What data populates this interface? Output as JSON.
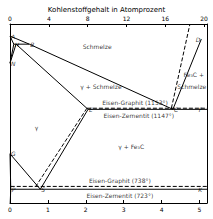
{
  "chart_data": {
    "type": "line",
    "title": "Kohlenstoffgehalt in Atomprozent",
    "color": "#000000",
    "xlim": [
      0,
      5.2
    ],
    "xticks": [
      0,
      1,
      2,
      3,
      4,
      5
    ],
    "x2lim": [
      0,
      20.3
    ],
    "x2ticks": [
      0,
      4,
      8,
      12,
      16,
      20
    ],
    "ylim": [
      650,
      1600
    ],
    "tick_labels": "x",
    "grid": false,
    "series": [
      {
        "line_style": "solid",
        "values": [
          [
            0,
            1536
          ],
          [
            0.51,
            1493
          ],
          [
            4.3,
            1147
          ],
          [
            5.05,
            1520
          ]
        ]
      },
      {
        "line_style": "solid",
        "values": [
          [
            0,
            1536
          ],
          [
            0.1,
            1493
          ],
          [
            0.51,
            1493
          ]
        ]
      },
      {
        "line_style": "solid",
        "values": [
          [
            0.1,
            1493
          ],
          [
            0,
            1392
          ]
        ]
      },
      {
        "line_style": "solid",
        "values": [
          [
            0.16,
            1493
          ],
          [
            0,
            1392
          ]
        ]
      },
      {
        "line_style": "solid",
        "values": [
          [
            0.16,
            1493
          ],
          [
            2.06,
            1147
          ]
        ]
      },
      {
        "line_style": "solid",
        "values": [
          [
            2.06,
            1147
          ],
          [
            5.2,
            1147
          ]
        ]
      },
      {
        "line_style": "dashed",
        "values": [
          [
            2.03,
            1153
          ],
          [
            5.2,
            1153
          ]
        ]
      },
      {
        "line_style": "dashed",
        "values": [
          [
            4.26,
            1153
          ],
          [
            4.75,
            1600
          ]
        ]
      },
      {
        "line_style": "solid",
        "values": [
          [
            2.06,
            1147
          ],
          [
            0.8,
            723
          ]
        ]
      },
      {
        "line_style": "dashed",
        "values": [
          [
            2.03,
            1153
          ],
          [
            0.68,
            738
          ]
        ]
      },
      {
        "line_style": "solid",
        "values": [
          [
            0,
            911
          ],
          [
            0.8,
            723
          ]
        ]
      },
      {
        "line_style": "solid",
        "values": [
          [
            0,
            911
          ],
          [
            0.02,
            723
          ],
          [
            0.005,
            650
          ]
        ]
      },
      {
        "line_style": "solid",
        "values": [
          [
            0.02,
            723
          ],
          [
            5.2,
            723
          ]
        ]
      },
      {
        "line_style": "dashed",
        "values": [
          [
            0.02,
            738
          ],
          [
            5.2,
            738
          ]
        ]
      }
    ],
    "points": [
      {
        "label": "A",
        "x": 0,
        "y": 1536
      },
      {
        "label": "H",
        "x": 0.1,
        "y": 1493
      },
      {
        "label": "B",
        "x": 0.51,
        "y": 1493
      },
      {
        "label": "N",
        "x": 0,
        "y": 1392
      },
      {
        "label": "G",
        "x": 0,
        "y": 911
      },
      {
        "label": "P",
        "x": 0.02,
        "y": 723
      },
      {
        "label": "S",
        "x": 0.8,
        "y": 723
      },
      {
        "label": "E",
        "x": 2.06,
        "y": 1147
      },
      {
        "label": "C",
        "x": 4.3,
        "y": 1147
      },
      {
        "label": "D",
        "x": 5.05,
        "y": 1520
      },
      {
        "label": "F",
        "x": 5.1,
        "y": 1147
      },
      {
        "label": "K",
        "x": 5.1,
        "y": 723
      }
    ],
    "annotations": [
      {
        "text": "Schmelze",
        "x": 2.3,
        "y": 1480
      },
      {
        "text": "γ + Schmelze",
        "x": 2.4,
        "y": 1270
      },
      {
        "text": "Fe₃C +",
        "x": 4.85,
        "y": 1330
      },
      {
        "text": "Schmelze",
        "x": 4.8,
        "y": 1270
      },
      {
        "text": "γ",
        "x": 0.7,
        "y": 1050
      },
      {
        "text": "γ + Fe₃C",
        "x": 3.2,
        "y": 950
      },
      {
        "text": "Eisen-Graphit (1153°)",
        "x": 3.3,
        "y": 1185
      },
      {
        "text": "Eisen-Zementit (1147°)",
        "x": 3.4,
        "y": 1112
      },
      {
        "text": "Eisen-Graphit (738°)",
        "x": 2.9,
        "y": 768
      },
      {
        "text": "Eisen-Zementit (723°)",
        "x": 2.9,
        "y": 692
      }
    ]
  }
}
